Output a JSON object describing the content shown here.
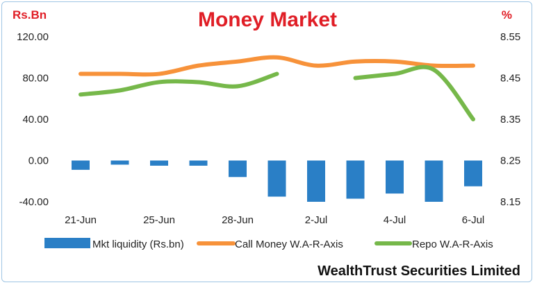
{
  "chart_data": {
    "type": "bar+line",
    "title": "Money Market",
    "left_unit": "Rs.Bn",
    "right_unit": "%",
    "credit": "WealthTrust Securities Limited",
    "categories": [
      "21-Jun",
      "",
      "25-Jun",
      "",
      "28-Jun",
      "",
      "2-Jul",
      "",
      "4-Jul",
      "",
      "6-Jul"
    ],
    "x_tick_labels": [
      "21-Jun",
      "25-Jun",
      "28-Jun",
      "2-Jul",
      "4-Jul",
      "6-Jul"
    ],
    "left_axis": {
      "ticks": [
        "120.00",
        "80.00",
        "40.00",
        "0.00",
        "-40.00"
      ],
      "range": [
        -40,
        120
      ]
    },
    "right_axis": {
      "ticks": [
        "8.55",
        "8.45",
        "8.35",
        "8.25",
        "8.15"
      ],
      "range": [
        8.15,
        8.55
      ]
    },
    "series": [
      {
        "name": "Mkt liquidity (Rs.bn)",
        "kind": "bar",
        "axis": "left",
        "color": "#2a7fc6",
        "values": [
          -9,
          -4,
          -5,
          -5,
          -16,
          -35,
          -40,
          -37,
          -32,
          -40,
          -25
        ]
      },
      {
        "name": "Call Money W.A-R-Axis",
        "kind": "line",
        "axis": "right",
        "color": "#f7923a",
        "values": [
          8.46,
          8.46,
          8.46,
          8.48,
          8.49,
          8.5,
          8.48,
          8.49,
          8.49,
          8.48,
          8.48
        ]
      },
      {
        "name": "Repo W.A-R-Axis",
        "kind": "line",
        "axis": "right",
        "color": "#76b84a",
        "values": [
          8.41,
          8.42,
          8.44,
          8.44,
          8.43,
          8.46,
          null,
          8.45,
          8.46,
          8.47,
          8.35
        ]
      }
    ],
    "grid": false
  }
}
